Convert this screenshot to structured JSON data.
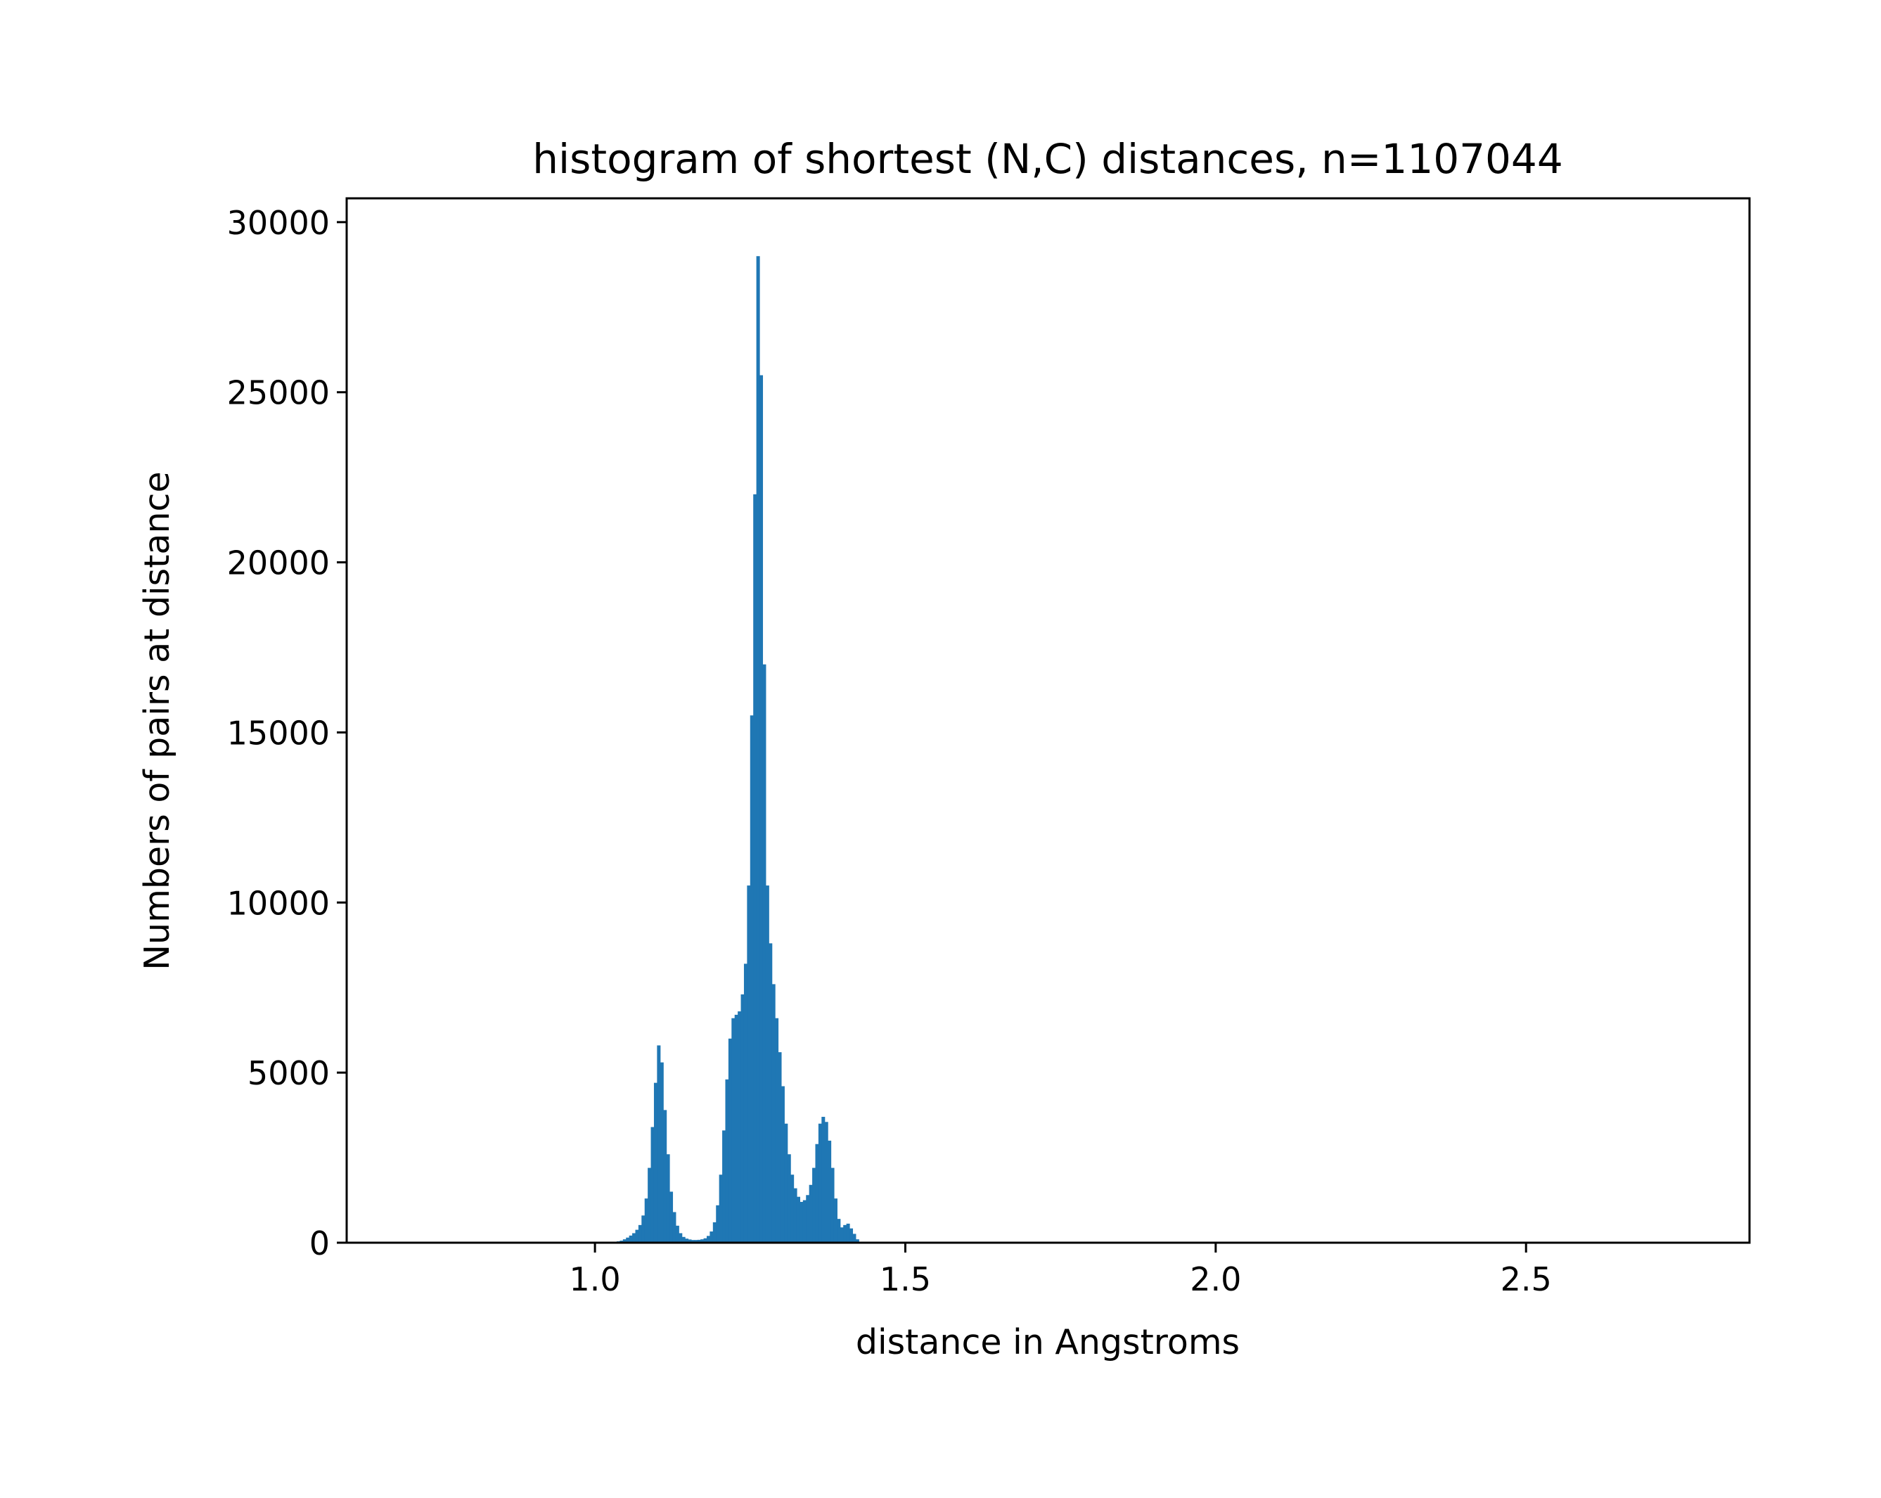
{
  "chart_data": {
    "type": "bar",
    "title": "histogram of shortest (N,C) distances, n=1107044",
    "xlabel": "distance in Angstroms",
    "ylabel": "Numbers of pairs at distance",
    "xlim": [
      0.6,
      2.86
    ],
    "ylim": [
      0,
      30700
    ],
    "x_ticks": [
      {
        "value": 1.0,
        "label": "1.0"
      },
      {
        "value": 1.5,
        "label": "1.5"
      },
      {
        "value": 2.0,
        "label": "2.0"
      },
      {
        "value": 2.5,
        "label": "2.5"
      }
    ],
    "y_ticks": [
      {
        "value": 0,
        "label": "0"
      },
      {
        "value": 5000,
        "label": "5000"
      },
      {
        "value": 10000,
        "label": "10000"
      },
      {
        "value": 15000,
        "label": "15000"
      },
      {
        "value": 20000,
        "label": "20000"
      },
      {
        "value": 25000,
        "label": "25000"
      },
      {
        "value": 30000,
        "label": "30000"
      }
    ],
    "bar_color": "#1f77b4",
    "bins": {
      "x_start": 1.03,
      "bin_width": 0.005,
      "values": [
        20,
        40,
        60,
        100,
        150,
        210,
        280,
        380,
        520,
        800,
        1300,
        2200,
        3400,
        4700,
        5800,
        5300,
        3900,
        2600,
        1500,
        900,
        500,
        280,
        170,
        120,
        95,
        80,
        80,
        85,
        100,
        130,
        200,
        330,
        600,
        1100,
        2000,
        3300,
        4800,
        6000,
        6600,
        6700,
        6800,
        7300,
        8200,
        10500,
        15500,
        22000,
        29000,
        25500,
        17000,
        10500,
        8800,
        7600,
        6600,
        5600,
        4600,
        3500,
        2600,
        2000,
        1600,
        1350,
        1200,
        1250,
        1400,
        1700,
        2200,
        2900,
        3500,
        3700,
        3550,
        3000,
        2200,
        1300,
        700,
        450,
        520,
        560,
        420,
        260,
        100
      ]
    }
  }
}
